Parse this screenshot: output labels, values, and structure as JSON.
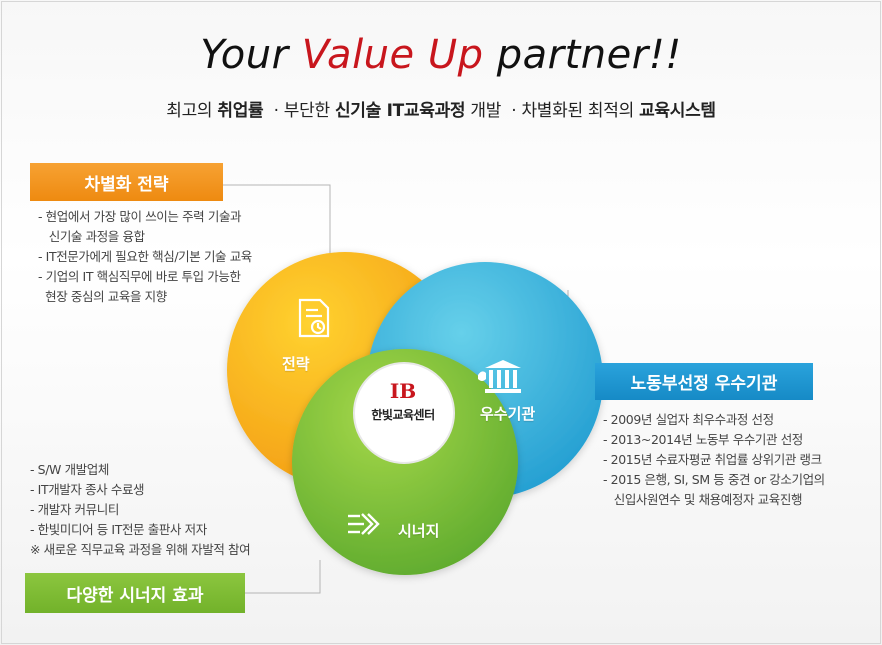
{
  "headline": {
    "prefix": "Your",
    "accent": "Value Up",
    "suffix": "partner!!"
  },
  "subline": {
    "p1": "최고의 ",
    "b1": "취업률",
    "p2": "  · 부단한 ",
    "b2": "신기술 IT교육과정",
    "p3": " 개발  · 차별화된 최적의 ",
    "b3": "교육시스템"
  },
  "sections": {
    "strategy": {
      "tag": "차별화 전략",
      "items": [
        "- 현업에서 가장 많이 쓰이는 주력 기술과",
        "   신기술 과정을 융합",
        "- IT전문가에게 필요한 핵심/기본 기술  교육",
        "- 기업의 IT 핵심직무에 바로 투입 가능한",
        "  현장 중심의 교육을 지향"
      ]
    },
    "institution": {
      "tag": "노동부선정 우수기관",
      "items": [
        "- 2009년 실업자 최우수과정 선정",
        "- 2013~2014년 노동부 우수기관 선정",
        "- 2015년 수료자평균 취업률 상위기관 랭크",
        "- 2015 은행, SI, SM 등 중견 or 강소기업의",
        "   신입사원연수 및 채용예정자 교육진행"
      ]
    },
    "synergy": {
      "tag": "다양한 시너지 효과",
      "items": [
        "- S/W 개발업체",
        "- IT개발자 종사 수료생",
        "- 개발자 커뮤니티",
        "- 한빛미디어 등 IT전문 출판사 저자",
        "※ 새로운 직무교육 과정을 위해 자발적 참여"
      ]
    }
  },
  "venn": {
    "strategy_label": "전략",
    "institution_label": "우수기관",
    "synergy_label": "시너지",
    "center_mark": "IB",
    "center_name": "한빛교육센터",
    "colors": {
      "orange": "#f6a81c",
      "blue": "#3bb4dc",
      "green": "#7cc242"
    },
    "icons": [
      "document-clock-icon",
      "bank-icon",
      "arrows-icon"
    ]
  }
}
